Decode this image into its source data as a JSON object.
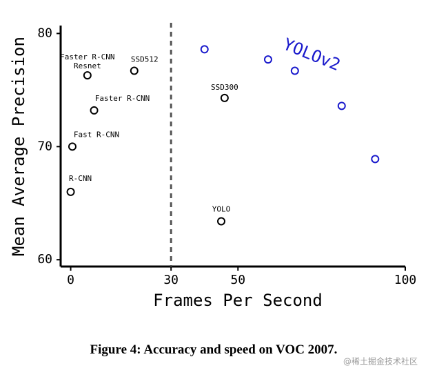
{
  "chart_data": {
    "type": "scatter",
    "x_label": "Frames Per Second",
    "y_label": "Mean Average Precision",
    "xlim": [
      -3,
      100
    ],
    "ylim": [
      59.4,
      80.7
    ],
    "xticks": [
      0,
      30,
      50,
      100
    ],
    "yticks": [
      60,
      70,
      80
    ],
    "vline": 30,
    "series": [
      {
        "color": "#000000",
        "x": [
          0,
          0.5,
          7,
          5,
          19,
          46,
          45
        ],
        "values": [
          66.0,
          70.0,
          73.2,
          76.3,
          76.7,
          74.3,
          63.4
        ],
        "labels": [
          [
            "R-CNN"
          ],
          [
            "Fast R-CNN"
          ],
          [
            "Faster R-CNN"
          ],
          [
            "Faster R-CNN",
            "Resnet"
          ],
          [
            "SSD512"
          ],
          [
            "SSD300"
          ],
          [
            "YOLO"
          ]
        ]
      },
      {
        "name": "YOLOv2",
        "color": "#1a1acc",
        "x": [
          40,
          59,
          67,
          81,
          91
        ],
        "values": [
          78.6,
          77.7,
          76.7,
          73.6,
          68.9
        ]
      }
    ]
  },
  "caption": {
    "label": "Figure 4:",
    "text": "Accuracy and speed on VOC 2007."
  },
  "watermark": "@稀土掘金技术社区"
}
